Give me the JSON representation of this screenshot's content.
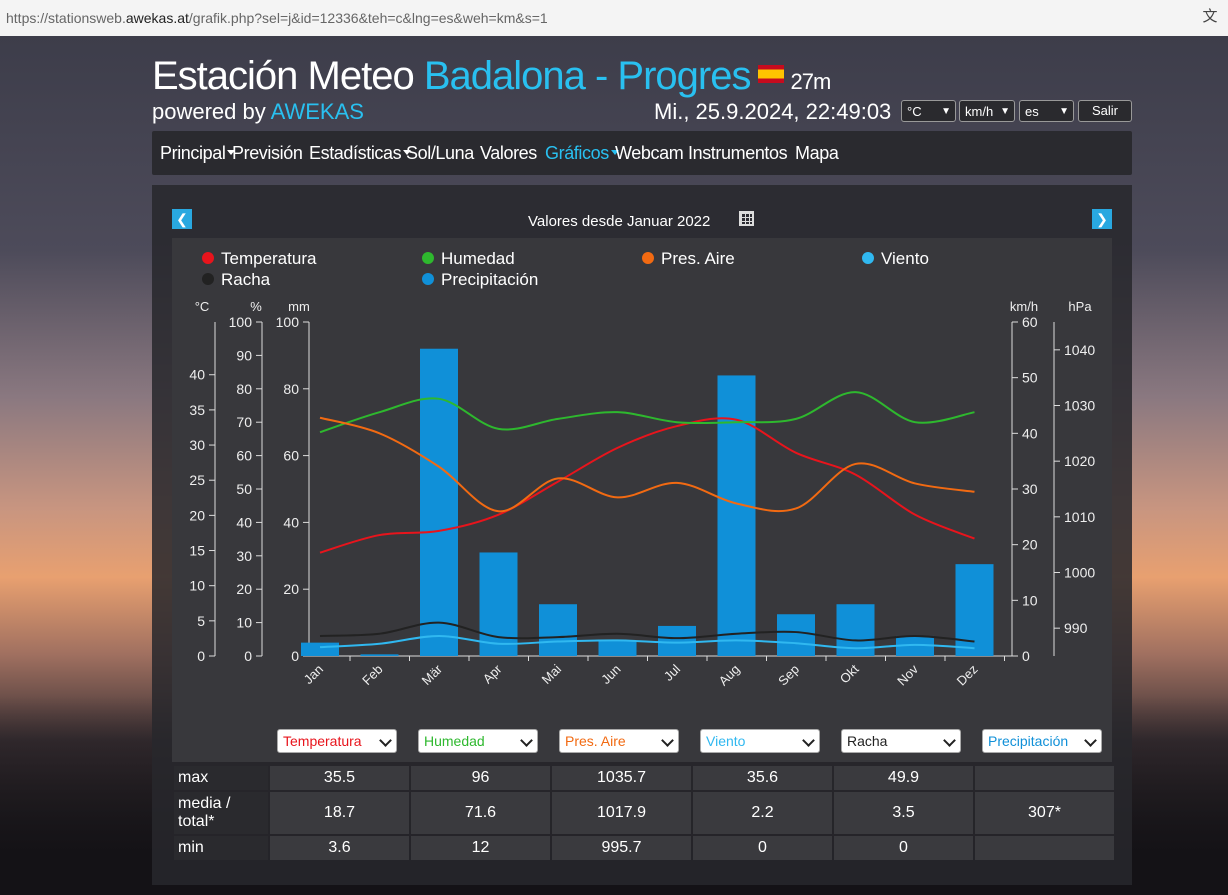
{
  "browser": {
    "url_prefix": "https://stationsweb.",
    "url_domain": "awekas.at",
    "url_rest": "/grafik.php?sel=j&id=12336&teh=c&lng=es&weh=km&s=1"
  },
  "header": {
    "title_prefix": "Estación Meteo ",
    "title_station": "Badalona - Progres",
    "altitude": "27m",
    "powered_prefix": "powered by ",
    "powered_brand": "AWEKAS",
    "datetime": "Mi., 25.9.2024, 22:49:03",
    "unit_temp": "°C",
    "unit_wind": "km/h",
    "lang": "es",
    "logout": "Salir"
  },
  "nav": {
    "items": [
      {
        "label": "Principal"
      },
      {
        "label": "Previsión"
      },
      {
        "label": "Estadísticas"
      },
      {
        "label": "Sol/Luna"
      },
      {
        "label": "Valores"
      },
      {
        "label": "Gráficos"
      },
      {
        "label": "Webcam"
      },
      {
        "label": "Instrumentos"
      },
      {
        "label": "Mapa"
      }
    ]
  },
  "panel": {
    "subtitle": "Valores desde Januar 2022"
  },
  "colors": {
    "temp": "#e8141c",
    "hum": "#2eb82e",
    "pres": "#f26a12",
    "wind": "#30b8f0",
    "gust": "#222222",
    "precip": "#1090d8"
  },
  "chart_data": {
    "type": "bar+line",
    "categories": [
      "Jan",
      "Feb",
      "Mär",
      "Apr",
      "Mai",
      "Jun",
      "Jul",
      "Aug",
      "Sep",
      "Okt",
      "Nov",
      "Dez"
    ],
    "legend": [
      "Temperatura",
      "Humedad",
      "Pres. Aire",
      "Viento",
      "Racha",
      "Precipitación"
    ],
    "axes": {
      "temp": {
        "label": "°C",
        "ticks": [
          0,
          5,
          10,
          15,
          20,
          25,
          30,
          35,
          40
        ],
        "range": [
          0,
          47.5
        ]
      },
      "hum": {
        "label": "%",
        "ticks": [
          0,
          10,
          20,
          30,
          40,
          50,
          60,
          70,
          80,
          90,
          100
        ],
        "range": [
          0,
          100
        ]
      },
      "precip": {
        "label": "mm",
        "ticks": [
          0,
          20,
          40,
          60,
          80,
          100
        ],
        "range": [
          0,
          100
        ]
      },
      "wind": {
        "label": "km/h",
        "ticks": [
          0,
          10,
          20,
          30,
          40,
          50,
          60
        ],
        "range": [
          0,
          60
        ]
      },
      "pres": {
        "label": "hPa",
        "ticks": [
          990,
          1000,
          1010,
          1020,
          1030,
          1040
        ],
        "range": [
          985,
          1045
        ]
      }
    },
    "series": [
      {
        "name": "Precipitación",
        "axis": "precip",
        "values": [
          4,
          0.5,
          92,
          31,
          15.5,
          4.5,
          9,
          84,
          12.5,
          15.5,
          6,
          27.5
        ]
      },
      {
        "name": "Temperatura",
        "axis": "temp",
        "values": [
          14.7,
          17.2,
          17.8,
          20.1,
          24.8,
          29.6,
          32.7,
          33.6,
          28.9,
          25.8,
          20.1,
          16.7
        ]
      },
      {
        "name": "Humedad",
        "axis": "hum",
        "values": [
          67,
          73,
          77,
          68,
          71,
          73,
          70,
          70,
          71,
          79,
          70,
          73
        ]
      },
      {
        "name": "Pres. Aire",
        "axis": "pres",
        "values": [
          1027.8,
          1025,
          1019,
          1011,
          1016.9,
          1013.5,
          1016.1,
          1012.4,
          1011.5,
          1019.5,
          1016,
          1014.5
        ]
      },
      {
        "name": "Viento",
        "axis": "wind",
        "values": [
          1.6,
          2.2,
          3.6,
          2.2,
          2.6,
          2.8,
          2.4,
          2.8,
          2.3,
          1.4,
          2.0,
          1.4
        ]
      },
      {
        "name": "Racha",
        "axis": "wind",
        "values": [
          3.6,
          4.0,
          6.0,
          3.4,
          3.4,
          4.0,
          3.2,
          4.0,
          4.3,
          2.8,
          3.6,
          2.6
        ]
      }
    ]
  },
  "selectors": [
    "Temperatura",
    "Humedad",
    "Pres. Aire",
    "Viento",
    "Racha",
    "Precipitación"
  ],
  "stats": {
    "rows": [
      {
        "label": "max",
        "values": [
          "35.5",
          "96",
          "1035.7",
          "35.6",
          "49.9",
          ""
        ]
      },
      {
        "label": "media / total*",
        "values": [
          "18.7",
          "71.6",
          "1017.9",
          "2.2",
          "3.5",
          "307*"
        ]
      },
      {
        "label": "min",
        "values": [
          "3.6",
          "12",
          "995.7",
          "0",
          "0",
          ""
        ]
      }
    ]
  }
}
